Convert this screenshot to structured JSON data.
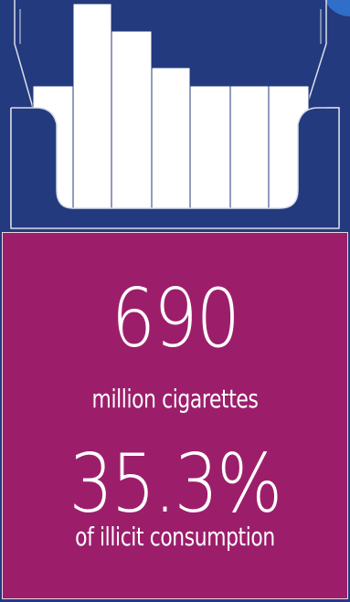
{
  "stats": [
    {
      "value": "690",
      "caption": "million cigarettes"
    },
    {
      "value": "35.3%",
      "caption": "of illicit consumption"
    }
  ],
  "colors": {
    "background": "#243a7e",
    "pack_body": "#9c1e6b",
    "cigarette": "#ffffff",
    "accent": "#2f6ec9"
  },
  "illustration": {
    "icon": "cigarette-pack-icon",
    "cigarette_count": 7
  }
}
